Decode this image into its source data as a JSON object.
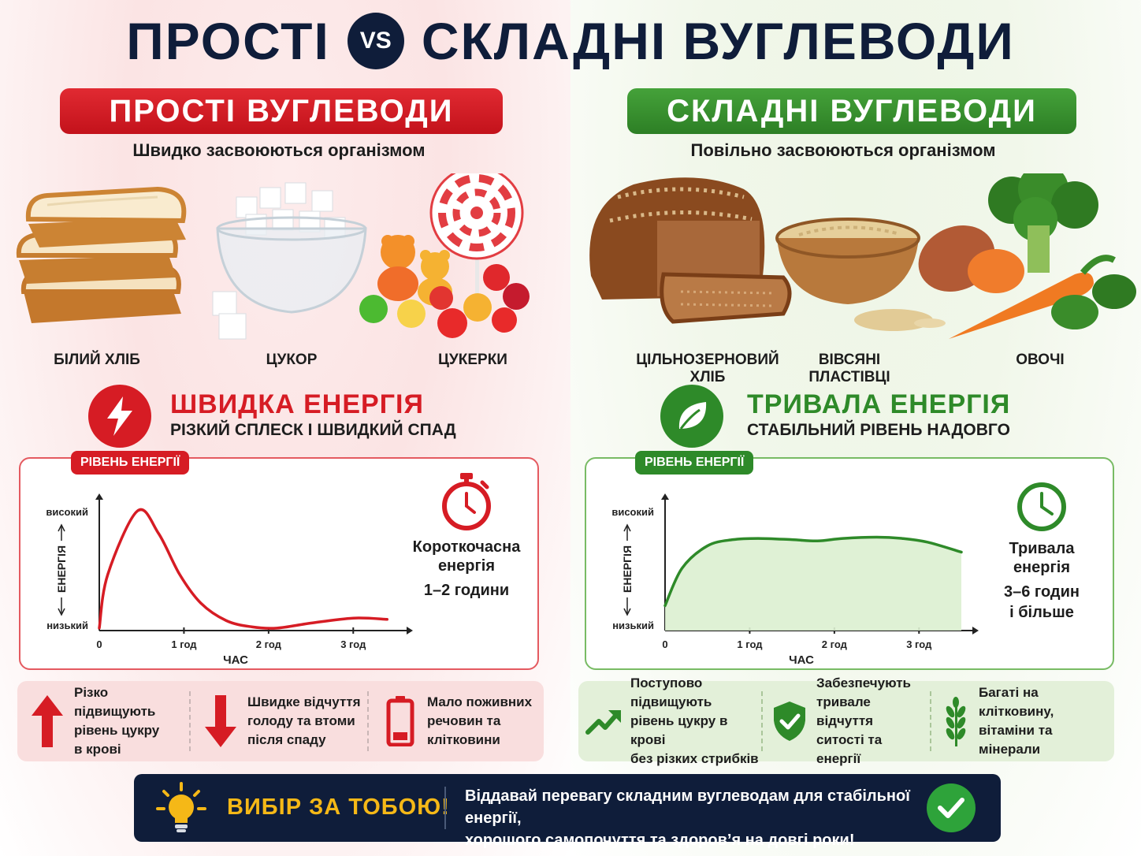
{
  "header": {
    "title_left": "ПРОСТІ",
    "vs": "VS",
    "title_right": "СКЛАДНІ ВУГЛЕВОДИ"
  },
  "simple": {
    "pill": "ПРОСТІ ВУГЛЕВОДИ",
    "subtitle": "Швидко засвоюються організмом",
    "foods": [
      {
        "label": "БІЛИЙ ХЛІБ",
        "icon": "white-bread-icon"
      },
      {
        "label": "ЦУКОР",
        "icon": "sugar-cubes-icon"
      },
      {
        "label": "ЦУКЕРКИ",
        "icon": "candy-icon"
      }
    ],
    "energy_title": "ШВИДКА ЕНЕРГІЯ",
    "energy_sub": "РІЗКИЙ СПЛЕСК І ШВИДКИЙ СПАД",
    "chart_tag": "РІВЕНЬ ЕНЕРГІЇ",
    "side_text": [
      "Короткочасна",
      "енергія"
    ],
    "side_duration": "1–2 години",
    "facts": [
      {
        "lines": [
          "Різко підвищують",
          "рівень цукру",
          "в крові"
        ],
        "icon": "arrow-up-icon"
      },
      {
        "lines": [
          "Швидке відчуття",
          "голоду та втоми",
          "після спаду"
        ],
        "icon": "arrow-down-icon"
      },
      {
        "lines": [
          "Мало поживних",
          "речовин та",
          "клітковини"
        ],
        "icon": "low-battery-icon"
      }
    ],
    "accent": "#d61c24"
  },
  "complex": {
    "pill": "СКЛАДНІ ВУГЛЕВОДИ",
    "subtitle": "Повільно засвоюються організмом",
    "foods": [
      {
        "label": "ЦІЛЬНОЗЕРНОВИЙ",
        "label2": "ХЛІБ",
        "icon": "wholegrain-bread-icon"
      },
      {
        "label": "ВІВСЯНІ",
        "label2": "ПЛАСТІВЦІ",
        "icon": "oats-bowl-icon"
      },
      {
        "label": "ОВОЧІ",
        "label2": "",
        "icon": "vegetables-icon"
      }
    ],
    "energy_title": "ТРИВАЛА ЕНЕРГІЯ",
    "energy_sub": "СТАБІЛЬНИЙ РІВЕНЬ НАДОВГО",
    "chart_tag": "РІВЕНЬ ЕНЕРГІЇ",
    "side_text": [
      "Тривала",
      "енергія"
    ],
    "side_duration": [
      "3–6 годин",
      "і більше"
    ],
    "facts": [
      {
        "lines": [
          "Поступово підвищують",
          "рівень цукру в крові",
          "без різких стрибків"
        ],
        "icon": "trend-up-icon"
      },
      {
        "lines": [
          "Забезпечують",
          "тривале відчуття",
          "ситості та енергії"
        ],
        "icon": "shield-check-icon"
      },
      {
        "lines": [
          "Багаті на клітковину,",
          "вітаміни та мінерали"
        ],
        "icon": "wheat-icon"
      }
    ],
    "accent": "#2e8a29"
  },
  "chart_data": [
    {
      "type": "line",
      "series": [
        {
          "values": [
            0.02,
            0.45,
            0.96,
            0.78,
            0.45,
            0.22,
            0.08,
            0.03,
            0.02,
            0.06,
            0.1,
            0.09
          ]
        }
      ],
      "x": [
        0,
        0.1,
        0.45,
        0.7,
        0.95,
        1.2,
        1.5,
        1.8,
        2.1,
        2.5,
        3.0,
        3.4
      ],
      "xlabel": "ЧАС",
      "ylabel": "ЕНЕРГІЯ",
      "x_ticks": [
        "0",
        "1 год",
        "2 год",
        "3 год"
      ],
      "y_ticks": [
        "високий",
        "низький"
      ],
      "accent": "#d61c24",
      "fill": false
    },
    {
      "type": "area",
      "series": [
        {
          "values": [
            0.2,
            0.5,
            0.68,
            0.73,
            0.74,
            0.73,
            0.72,
            0.74,
            0.75,
            0.74,
            0.71,
            0.63
          ]
        }
      ],
      "x": [
        0,
        0.2,
        0.5,
        0.8,
        1.1,
        1.5,
        1.8,
        2.1,
        2.5,
        2.8,
        3.1,
        3.5
      ],
      "xlabel": "ЧАС",
      "ylabel": "ЕНЕРГІЯ",
      "x_ticks": [
        "0",
        "1 год",
        "2 год",
        "3 год"
      ],
      "y_ticks": [
        "високий",
        "низький"
      ],
      "accent": "#2e8a29",
      "fill": true
    }
  ],
  "banner": {
    "title": "ВИБІР ЗА ТОБОЮ!",
    "text_line1": "Віддавай перевагу складним вуглеводам для стабільної енергії,",
    "text_line2": "хорошого самопочуття та здоров’я на довгі роки!",
    "icon": "lightbulb-icon"
  }
}
